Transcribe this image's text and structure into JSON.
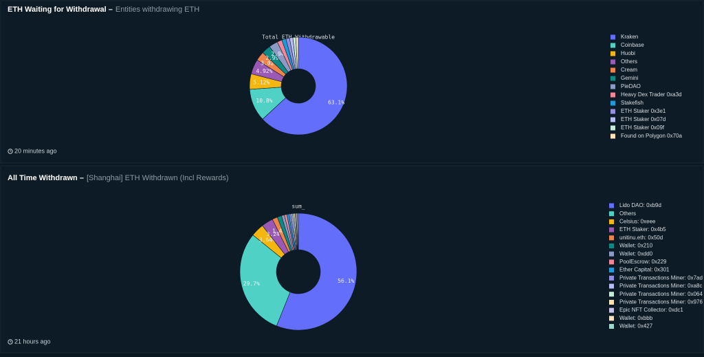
{
  "panels": [
    {
      "title": "ETH Waiting for Withdrawal –",
      "subtitle": "Entities withdrawing ETH",
      "updated": "20 minutes ago"
    },
    {
      "title": "All Time Withdrawn –",
      "subtitle": "[Shanghai] ETH Withdrawn (Incl Rewards)",
      "updated": "21 hours ago"
    }
  ],
  "chart_data": [
    {
      "type": "pie",
      "title": "Total ETH Withdrawable",
      "categories": [
        "Kraken",
        "Coinbase",
        "Huobi",
        "Others",
        "Cream",
        "Gemini",
        "PieDAO",
        "Heavy Dex Trader 0xa3d",
        "Stakefish",
        "ETH Staker 0x3e1",
        "ETH Staker 0x07d",
        "ETH Staker 0x09f",
        "Found on Polygon 0x70a"
      ],
      "values": [
        63.1,
        10.8,
        5.12,
        4.92,
        3.02,
        2.99,
        2.94,
        1.6,
        1.4,
        1.2,
        1.1,
        0.95,
        0.86
      ],
      "value_labels": [
        "63.1%",
        "10.8%",
        "5.12%",
        "4.92%",
        "3.02%",
        "2.99%",
        "2.94%",
        null,
        null,
        null,
        null,
        null,
        null
      ],
      "colors": [
        "#636efa",
        "#4fd1c5",
        "#f5b70f",
        "#9b59b6",
        "#f0834a",
        "#0d8a84",
        "#8c9bc3",
        "#f2879a",
        "#1c9bd8",
        "#9390e0",
        "#b8bff0",
        "#c8ead8",
        "#fde3b5"
      ],
      "legend": "right"
    },
    {
      "type": "pie",
      "title": "sum_",
      "categories": [
        "Lido DAO: 0xb9d",
        "Others",
        "Celsius: 0xeee",
        "ETH Staker: 0x4b5",
        "unitinu.eth: 0x50d",
        "Wallet: 0x210",
        "Wallet: 0xdd0",
        "PoolEscrow: 0x229",
        "Ether Capital: 0x301",
        "Private Transactions Miner: 0x7ad",
        "Private Transactions Miner: 0xa8c",
        "Private Transactions Miner: 0x064",
        "Private Transactions Miner: 0x976",
        "Epic NFT Collector: 0xdc1",
        "Wallet: 0xbbb",
        "Wallet: 0x427"
      ],
      "values": [
        56.1,
        29.7,
        3.64,
        3.24,
        1.45,
        1.2,
        0.8,
        0.7,
        0.6,
        0.5,
        0.45,
        0.4,
        0.35,
        0.3,
        0.3,
        0.27
      ],
      "value_labels": [
        "56.1%",
        "29.7%",
        "3.64%",
        "3.24%",
        "1.45%",
        null,
        null,
        null,
        null,
        null,
        null,
        null,
        null,
        null,
        null,
        null
      ],
      "colors": [
        "#636efa",
        "#4fd1c5",
        "#f5b70f",
        "#9b59b6",
        "#f0834a",
        "#0d8a84",
        "#8c9bc3",
        "#f2879a",
        "#1c9bd8",
        "#9390e0",
        "#b8bff0",
        "#c8ead8",
        "#fde3b5",
        "#c7c3e8",
        "#f7e0c4",
        "#9fd8cf"
      ],
      "legend": "right"
    }
  ]
}
